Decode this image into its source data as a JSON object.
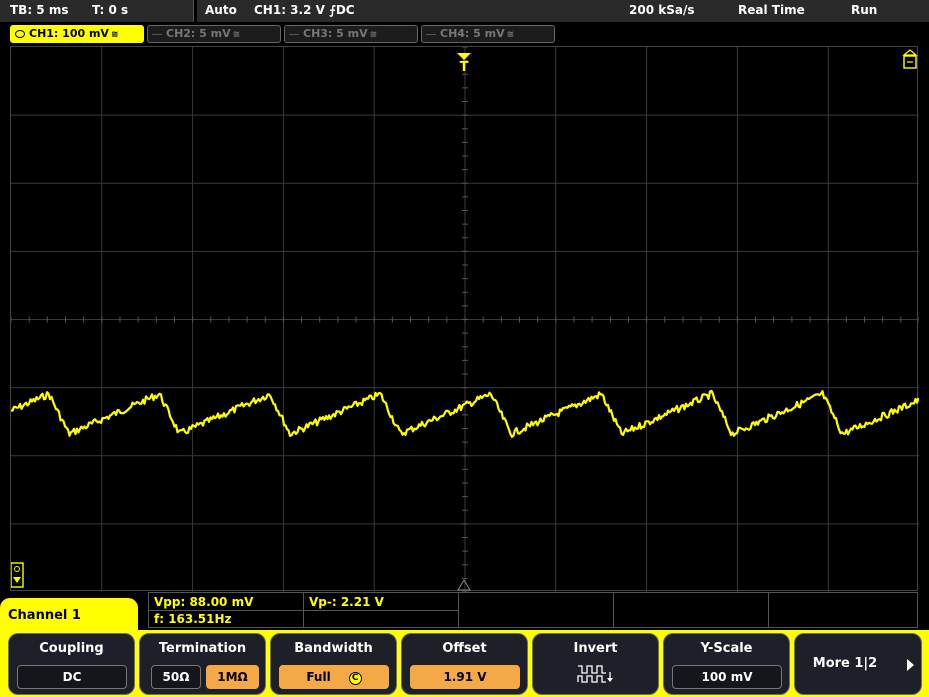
{
  "topbar": {
    "timebase": "TB: 5 ms",
    "trigger_time": "T: 0 s",
    "trigger_mode": "Auto",
    "trigger_source": "CH1: 3.2 V ⨍DC",
    "sample_rate": "200 kSa/s",
    "acq_mode": "Real Time",
    "run_state": "Run"
  },
  "channels": [
    {
      "label": "CH1: 100 mV",
      "coupling": "≅"
    },
    {
      "label": "CH2: 5 mV",
      "coupling": "≅"
    },
    {
      "label": "CH3: 5 mV",
      "coupling": "≅"
    },
    {
      "label": "CH4: 5 mV",
      "coupling": "≅"
    }
  ],
  "screen": {
    "trigger_marker": "T",
    "grid_divisions": {
      "x": 10,
      "y": 8
    },
    "trace_color": "#ffff00"
  },
  "measurements": {
    "channel_label": "Channel 1",
    "vpp": "Vpp: 88.00 mV",
    "vpm": "Vp-: 2.21 V",
    "freq": "f: 163.51Hz"
  },
  "softkeys": {
    "coupling": {
      "title": "Coupling",
      "value": "DC"
    },
    "termination": {
      "title": "Termination",
      "opt1": "50Ω",
      "opt2": "1MΩ"
    },
    "bandwidth": {
      "title": "Bandwidth",
      "value": "Full",
      "badge": "C"
    },
    "offset": {
      "title": "Offset",
      "value": "1.91 V"
    },
    "invert": {
      "title": "Invert"
    },
    "yscale": {
      "title": "Y-Scale",
      "value": "100 mV"
    },
    "more": {
      "title": "More 1|2"
    }
  },
  "colors": {
    "accent": "#ffff00",
    "key_active": "#f5a946",
    "key_bg": "#1e2029"
  }
}
